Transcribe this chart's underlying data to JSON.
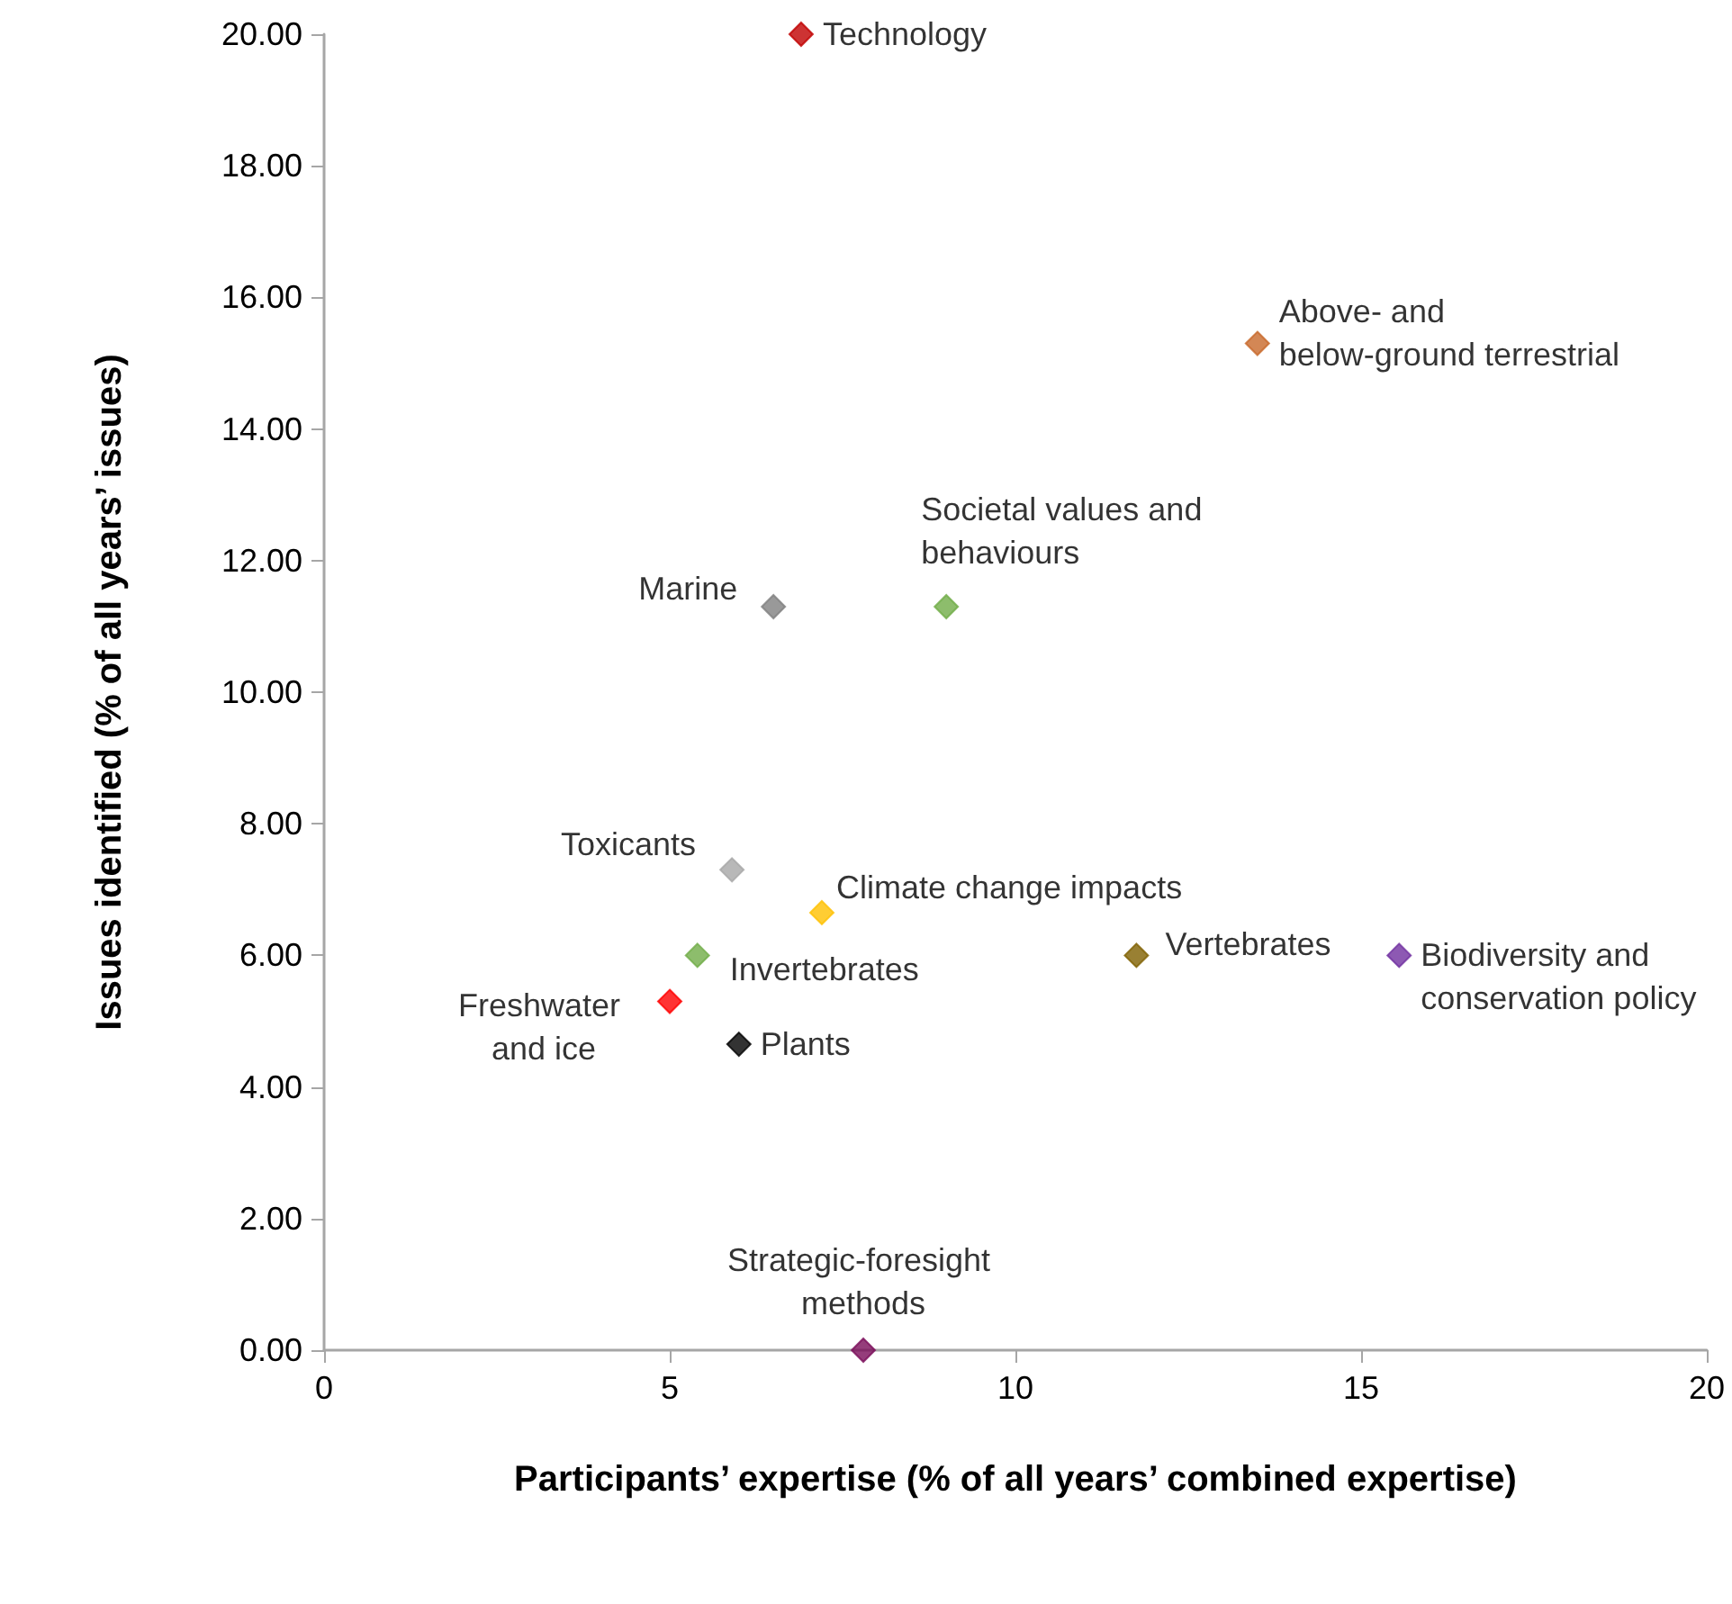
{
  "chart_data": {
    "type": "scatter",
    "xlabel": "Participants’ expertise (% of all years’ combined expertise)",
    "ylabel": "Issues identified (% of all years’ issues)",
    "xlim": [
      0,
      20
    ],
    "xticks": [
      0,
      5,
      10,
      15,
      20
    ],
    "ylim": [
      0,
      20
    ],
    "yticks": [
      {
        "value": 0,
        "label": "0.00"
      },
      {
        "value": 2,
        "label": "2.00"
      },
      {
        "value": 4,
        "label": "4.00"
      },
      {
        "value": 6,
        "label": "6.00"
      },
      {
        "value": 8,
        "label": "8.00"
      },
      {
        "value": 10,
        "label": "10.00"
      },
      {
        "value": 12,
        "label": "12.00"
      },
      {
        "value": 14,
        "label": "14.00"
      },
      {
        "value": 16,
        "label": "16.00"
      },
      {
        "value": 18,
        "label": "18.00"
      },
      {
        "value": 20,
        "label": "20.00"
      }
    ],
    "grid": false,
    "legend": false,
    "marker": "diamond",
    "series": [
      {
        "name": "Technology",
        "color": "#c00000",
        "x": [
          6.9
        ],
        "values": [
          20
        ]
      },
      {
        "name": "Above- and below-ground terrestrial",
        "color": "#c8692a",
        "x": [
          13.5
        ],
        "values": [
          15.3
        ]
      },
      {
        "name": "Marine",
        "color": "#808080",
        "x": [
          6.5
        ],
        "values": [
          11.3
        ]
      },
      {
        "name": "Societal values and behaviours",
        "color": "#70ad47",
        "x": [
          9.0
        ],
        "values": [
          11.3
        ]
      },
      {
        "name": "Toxicants",
        "color": "#a6a6a6",
        "x": [
          5.9
        ],
        "values": [
          7.3
        ]
      },
      {
        "name": "Climate change impacts",
        "color": "#ffc000",
        "x": [
          7.2
        ],
        "values": [
          6.65
        ]
      },
      {
        "name": "Invertebrates",
        "color": "#70ad47",
        "x": [
          5.4
        ],
        "values": [
          6.0
        ]
      },
      {
        "name": "Freshwater and ice",
        "color": "#ff0000",
        "x": [
          5.0
        ],
        "values": [
          5.3
        ]
      },
      {
        "name": "Plants",
        "color": "#000000",
        "x": [
          6.0
        ],
        "values": [
          4.65
        ]
      },
      {
        "name": "Vertebrates",
        "color": "#7f6000",
        "x": [
          11.75
        ],
        "values": [
          6.0
        ]
      },
      {
        "name": "Biodiversity and conservation policy",
        "color": "#7030a0",
        "x": [
          15.55
        ],
        "values": [
          6.0
        ]
      },
      {
        "name": "Strategic-foresight methods",
        "color": "#7b0c5a",
        "x": [
          7.8
        ],
        "values": [
          0
        ]
      }
    ]
  }
}
